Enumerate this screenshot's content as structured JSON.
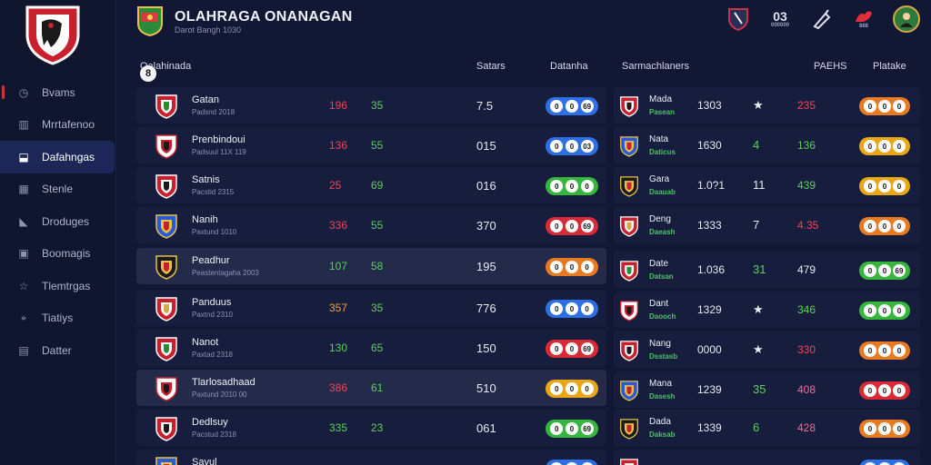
{
  "header": {
    "title": "OLAHRAGA ONANAGAN",
    "subtitle": "Darot Bangh 1030",
    "icons": [
      "shield-icon",
      "stats-icon",
      "edit-icon",
      "flame-icon"
    ],
    "stats_icon_label": "03",
    "stats_icon_sub": "000000",
    "flame_icon_sub": "888"
  },
  "sidebar": {
    "items": [
      {
        "label": "Bvams",
        "icon": "clock-icon",
        "glyph": "◷"
      },
      {
        "label": "Mrrtafenoo",
        "icon": "chart-icon",
        "glyph": "▥"
      },
      {
        "label": "Dafahngas",
        "icon": "inbox-icon",
        "glyph": "⬓"
      },
      {
        "label": "Stenle",
        "icon": "grid-icon",
        "glyph": "▦"
      },
      {
        "label": "Droduges",
        "icon": "animal-icon",
        "glyph": "◣"
      },
      {
        "label": "Boomagis",
        "icon": "box-icon",
        "glyph": "▣"
      },
      {
        "label": "Tlemtrgas",
        "icon": "star-icon",
        "glyph": "☆"
      },
      {
        "label": "Tiatiys",
        "icon": "pin-icon",
        "glyph": "⌖"
      },
      {
        "label": "Datter",
        "icon": "book-icon",
        "glyph": "▤"
      }
    ],
    "active_index": 2
  },
  "columns": {
    "section_number": "8",
    "section_title": "Oalahinada",
    "c1": "Satars",
    "c2": "Datanha",
    "c3": "Sarmachlaners",
    "c4": "PAEHS",
    "c5": "Platake"
  },
  "left_rows": [
    {
      "name": "Gatan",
      "sub": "Padsnd 2018",
      "v1": "196",
      "v1_color": "red",
      "v2": "35",
      "v3": "7.5",
      "pill": "blue",
      "dots": [
        "0",
        "0",
        "69"
      ]
    },
    {
      "name": "Prenbindoui",
      "sub": "Padsuul 11X 119",
      "v1": "136",
      "v1_color": "red",
      "v2": "55",
      "v3": "015",
      "pill": "blue",
      "dots": [
        "0",
        "0",
        "03"
      ]
    },
    {
      "name": "Satnis",
      "sub": "Pacstid 2315",
      "v1": "25",
      "v1_color": "red",
      "v2": "69",
      "v3": "016",
      "pill": "green",
      "dots": [
        "0",
        "0",
        "0"
      ]
    },
    {
      "name": "Nanih",
      "sub": "Paxtund 1010",
      "v1": "336",
      "v1_color": "red",
      "v2": "55",
      "v3": "370",
      "pill": "red",
      "dots": [
        "0",
        "0",
        "69"
      ]
    },
    {
      "name": "Peadhur",
      "sub": "Peastentagaha 2003",
      "v1": "107",
      "v1_color": "green",
      "v2": "58",
      "v3": "195",
      "v3_color": "orange",
      "pill": "orange",
      "dots": [
        "0",
        "0",
        "0"
      ]
    },
    {
      "name": "Panduus",
      "sub": "Paxtnd 2310",
      "v1": "357",
      "v1_color": "orange",
      "v2": "35",
      "v3": "776",
      "pill": "blue",
      "dots": [
        "0",
        "0",
        "0"
      ]
    },
    {
      "name": "Nanot",
      "sub": "Paxtad 2318",
      "v1": "130",
      "v1_color": "green",
      "v2": "65",
      "v3": "150",
      "pill": "red",
      "dots": [
        "0",
        "0",
        "69"
      ]
    },
    {
      "name": "Tlarlosadhaad",
      "sub": "Paxtund 2010 00",
      "v1": "386",
      "v1_color": "red",
      "v2": "61",
      "v2_color": "yellow",
      "v3": "510",
      "pill": "yellow",
      "dots": [
        "0",
        "0",
        "0"
      ]
    },
    {
      "name": "Dedlsuy",
      "sub": "Pacstud 2318",
      "v1": "335",
      "v1_color": "green",
      "v2": "23",
      "v3": "061",
      "pill": "green",
      "dots": [
        "0",
        "0",
        "69"
      ]
    },
    {
      "name": "Savul",
      "sub": "",
      "v1": "",
      "v1_color": "green",
      "v2": "",
      "v3": "",
      "pill": "blue",
      "dots": [
        "",
        "",
        ""
      ]
    }
  ],
  "right_rows": [
    {
      "name": "Mada",
      "sub": "Pasean",
      "v1": "1303",
      "v2": "★",
      "v2_color": "white",
      "v3": "235",
      "v3_color": "red",
      "pill": "orange",
      "dots": [
        "0",
        "0",
        "0"
      ]
    },
    {
      "name": "Nata",
      "sub": "Daticus",
      "v1": "1630",
      "v2": "4",
      "v2_color": "green",
      "v3": "136",
      "v3_color": "green",
      "pill": "yellow",
      "dots": [
        "0",
        "0",
        "0"
      ]
    },
    {
      "name": "Gara",
      "sub": "Daauab",
      "v1": "1.0?1",
      "v2": "11",
      "v2_color": "white",
      "v3": "439",
      "v3_color": "green",
      "pill": "yellow",
      "dots": [
        "0",
        "0",
        "0"
      ]
    },
    {
      "name": "Deng",
      "sub": "Daeash",
      "v1": "1333",
      "v2": "7",
      "v2_color": "white",
      "v3": "4.35",
      "v3_color": "red",
      "pill": "orange",
      "dots": [
        "0",
        "0",
        "0"
      ]
    },
    {
      "name": "Date",
      "sub": "Datsan",
      "v1": "1.036",
      "v2": "31",
      "v2_color": "green",
      "v3": "479",
      "v3_color": "white",
      "pill": "green",
      "dots": [
        "0",
        "0",
        "69"
      ]
    },
    {
      "name": "Dant",
      "sub": "Daooch",
      "v1": "1329",
      "v2": "★",
      "v2_color": "white",
      "v3": "346",
      "v3_color": "green",
      "pill": "green",
      "dots": [
        "0",
        "0",
        "0"
      ]
    },
    {
      "name": "Nang",
      "sub": "Dsstasb",
      "v1": "0000",
      "v2": "★",
      "v2_color": "white",
      "v3": "330",
      "v3_color": "red",
      "pill": "orange",
      "dots": [
        "0",
        "0",
        "0"
      ]
    },
    {
      "name": "Mana",
      "sub": "Dasesh",
      "v1": "1239",
      "v2": "35",
      "v2_color": "green",
      "v3": "408",
      "v3_color": "pink",
      "pill": "red",
      "dots": [
        "0",
        "0",
        "0"
      ]
    },
    {
      "name": "Dada",
      "sub": "Daksab",
      "v1": "1339",
      "v2": "6",
      "v2_color": "green",
      "v3": "428",
      "v3_color": "pink",
      "pill": "orange",
      "dots": [
        "0",
        "0",
        "0"
      ]
    },
    {
      "name": "",
      "sub": "",
      "v1": "",
      "v2": "",
      "v3": "",
      "pill": "blue",
      "dots": [
        "",
        "",
        ""
      ]
    }
  ],
  "colors": {
    "blue": "#2f6fe6",
    "green": "#36b63c",
    "red": "#d92a36",
    "orange": "#e87a22",
    "yellow": "#e9a716",
    "accent": "#d0303a",
    "active_nav": "#1d2757"
  }
}
